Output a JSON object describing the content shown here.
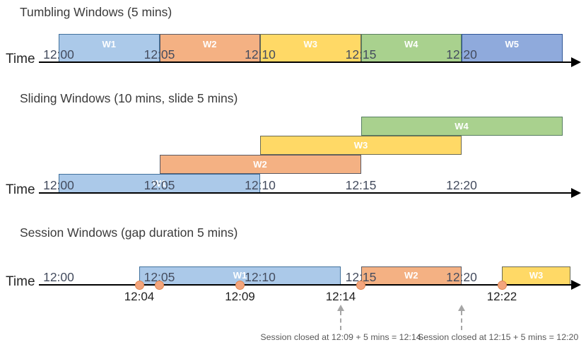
{
  "colors": {
    "lightblue": {
      "fill": "#ABC9E9",
      "border": "#41719C"
    },
    "mediumblue": {
      "fill": "#8FAADC",
      "border": "#2F5597"
    },
    "orange": {
      "fill": "#F4B183",
      "border": "#5A5A64"
    },
    "yellow": {
      "fill": "#FFD966",
      "border": "#6A6A52"
    },
    "green": {
      "fill": "#A9D18E",
      "border": "#587F62"
    },
    "event_dot": {
      "fill": "#F3A57D",
      "border": "#E0854F"
    },
    "axis": "#000000",
    "tick_text": "#444C5E",
    "annotation_text": "#595959",
    "dashed_arrow": "#A6A6A6"
  },
  "sections": [
    {
      "id": "tumbling",
      "title": "Tumbling Windows (5 mins)",
      "axis_label": "Time",
      "ticks": [
        {
          "label": "12:00",
          "min": 0
        },
        {
          "label": "12:05",
          "min": 5
        },
        {
          "label": "12:10",
          "min": 10
        },
        {
          "label": "12:15",
          "min": 15
        },
        {
          "label": "12:20",
          "min": 20
        }
      ],
      "windows": [
        {
          "label": "W1",
          "start_min": 0,
          "end_min": 5,
          "color": "lightblue",
          "row": 0
        },
        {
          "label": "W2",
          "start_min": 5,
          "end_min": 10,
          "color": "orange",
          "row": 0
        },
        {
          "label": "W3",
          "start_min": 10,
          "end_min": 15,
          "color": "yellow",
          "row": 0
        },
        {
          "label": "W4",
          "start_min": 15,
          "end_min": 20,
          "color": "green",
          "row": 0
        },
        {
          "label": "W5",
          "start_min": 20,
          "end_min": 25,
          "color": "mediumblue",
          "row": 0
        }
      ]
    },
    {
      "id": "sliding",
      "title": "Sliding Windows (10 mins, slide 5 mins)",
      "axis_label": "Time",
      "ticks": [
        {
          "label": "12:00",
          "min": 0
        },
        {
          "label": "12:05",
          "min": 5
        },
        {
          "label": "12:10",
          "min": 10
        },
        {
          "label": "12:15",
          "min": 15
        },
        {
          "label": "12:20",
          "min": 20
        }
      ],
      "windows": [
        {
          "label": "W1",
          "start_min": 0,
          "end_min": 10,
          "color": "lightblue",
          "row": 0
        },
        {
          "label": "W2",
          "start_min": 5,
          "end_min": 15,
          "color": "orange",
          "row": 1
        },
        {
          "label": "W3",
          "start_min": 10,
          "end_min": 20,
          "color": "yellow",
          "row": 2
        },
        {
          "label": "W4",
          "start_min": 15,
          "end_min": 25,
          "color": "green",
          "row": 3
        }
      ]
    },
    {
      "id": "session",
      "title": "Session Windows (gap duration 5 mins)",
      "axis_label": "Time",
      "ticks": [
        {
          "label": "12:00",
          "min": 0
        },
        {
          "label": "12:05",
          "min": 5
        },
        {
          "label": "12:10",
          "min": 10
        },
        {
          "label": "12:15",
          "min": 15
        },
        {
          "label": "12:20",
          "min": 20
        }
      ],
      "windows": [
        {
          "label": "W1",
          "start_min": 4,
          "end_min": 14,
          "color": "lightblue",
          "row": 0
        },
        {
          "label": "W2",
          "start_min": 15,
          "end_min": 20,
          "color": "orange",
          "row": 0
        },
        {
          "label": "W3",
          "start_min": 22,
          "end_min": 25.4,
          "color": "yellow",
          "row": 0
        }
      ],
      "events": [
        {
          "min": 4
        },
        {
          "min": 5
        },
        {
          "min": 9
        },
        {
          "min": 15
        },
        {
          "min": 22
        }
      ],
      "event_labels": [
        {
          "label": "12:04",
          "min": 4
        },
        {
          "label": "12:09",
          "min": 9
        },
        {
          "label": "12:14",
          "min": 14
        },
        {
          "label": "12:22",
          "min": 22
        }
      ],
      "closure_arrows": [
        {
          "min": 14
        },
        {
          "min": 20
        }
      ],
      "annotations": [
        {
          "text": "Session closed at 12:09 + 5 mins = 12:14",
          "anchor_min": 14
        },
        {
          "text": "Session closed at 12:15 + 5 mins = 12:20",
          "anchor_min": 20
        }
      ]
    }
  ]
}
